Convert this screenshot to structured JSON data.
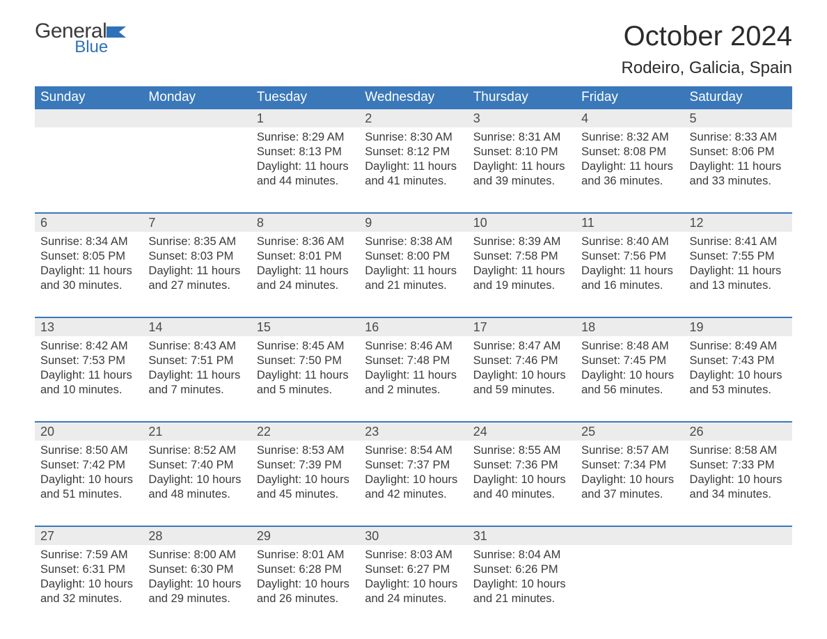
{
  "logo": {
    "text_general": "General",
    "text_blue": "Blue",
    "flag_color": "#2f71b8"
  },
  "title": "October 2024",
  "subtitle": "Rodeiro, Galicia, Spain",
  "colors": {
    "header_bg": "#3a78b9",
    "header_text": "#ffffff",
    "date_bg": "#ececec",
    "date_text": "#4a4a4a",
    "body_text": "#3a3a3a",
    "logo_blue": "#2f71b8",
    "logo_dark": "#3a3a3a",
    "background": "#ffffff"
  },
  "typography": {
    "title_fontsize": 40,
    "subtitle_fontsize": 24,
    "dayheader_fontsize": 19,
    "date_fontsize": 18,
    "detail_fontsize": 16.5
  },
  "day_headers": [
    "Sunday",
    "Monday",
    "Tuesday",
    "Wednesday",
    "Thursday",
    "Friday",
    "Saturday"
  ],
  "weeks": [
    [
      {
        "date": "",
        "lines": [
          "",
          "",
          "",
          ""
        ]
      },
      {
        "date": "",
        "lines": [
          "",
          "",
          "",
          ""
        ]
      },
      {
        "date": "1",
        "lines": [
          "Sunrise: 8:29 AM",
          "Sunset: 8:13 PM",
          "Daylight: 11 hours",
          "and 44 minutes."
        ]
      },
      {
        "date": "2",
        "lines": [
          "Sunrise: 8:30 AM",
          "Sunset: 8:12 PM",
          "Daylight: 11 hours",
          "and 41 minutes."
        ]
      },
      {
        "date": "3",
        "lines": [
          "Sunrise: 8:31 AM",
          "Sunset: 8:10 PM",
          "Daylight: 11 hours",
          "and 39 minutes."
        ]
      },
      {
        "date": "4",
        "lines": [
          "Sunrise: 8:32 AM",
          "Sunset: 8:08 PM",
          "Daylight: 11 hours",
          "and 36 minutes."
        ]
      },
      {
        "date": "5",
        "lines": [
          "Sunrise: 8:33 AM",
          "Sunset: 8:06 PM",
          "Daylight: 11 hours",
          "and 33 minutes."
        ]
      }
    ],
    [
      {
        "date": "6",
        "lines": [
          "Sunrise: 8:34 AM",
          "Sunset: 8:05 PM",
          "Daylight: 11 hours",
          "and 30 minutes."
        ]
      },
      {
        "date": "7",
        "lines": [
          "Sunrise: 8:35 AM",
          "Sunset: 8:03 PM",
          "Daylight: 11 hours",
          "and 27 minutes."
        ]
      },
      {
        "date": "8",
        "lines": [
          "Sunrise: 8:36 AM",
          "Sunset: 8:01 PM",
          "Daylight: 11 hours",
          "and 24 minutes."
        ]
      },
      {
        "date": "9",
        "lines": [
          "Sunrise: 8:38 AM",
          "Sunset: 8:00 PM",
          "Daylight: 11 hours",
          "and 21 minutes."
        ]
      },
      {
        "date": "10",
        "lines": [
          "Sunrise: 8:39 AM",
          "Sunset: 7:58 PM",
          "Daylight: 11 hours",
          "and 19 minutes."
        ]
      },
      {
        "date": "11",
        "lines": [
          "Sunrise: 8:40 AM",
          "Sunset: 7:56 PM",
          "Daylight: 11 hours",
          "and 16 minutes."
        ]
      },
      {
        "date": "12",
        "lines": [
          "Sunrise: 8:41 AM",
          "Sunset: 7:55 PM",
          "Daylight: 11 hours",
          "and 13 minutes."
        ]
      }
    ],
    [
      {
        "date": "13",
        "lines": [
          "Sunrise: 8:42 AM",
          "Sunset: 7:53 PM",
          "Daylight: 11 hours",
          "and 10 minutes."
        ]
      },
      {
        "date": "14",
        "lines": [
          "Sunrise: 8:43 AM",
          "Sunset: 7:51 PM",
          "Daylight: 11 hours",
          "and 7 minutes."
        ]
      },
      {
        "date": "15",
        "lines": [
          "Sunrise: 8:45 AM",
          "Sunset: 7:50 PM",
          "Daylight: 11 hours",
          "and 5 minutes."
        ]
      },
      {
        "date": "16",
        "lines": [
          "Sunrise: 8:46 AM",
          "Sunset: 7:48 PM",
          "Daylight: 11 hours",
          "and 2 minutes."
        ]
      },
      {
        "date": "17",
        "lines": [
          "Sunrise: 8:47 AM",
          "Sunset: 7:46 PM",
          "Daylight: 10 hours",
          "and 59 minutes."
        ]
      },
      {
        "date": "18",
        "lines": [
          "Sunrise: 8:48 AM",
          "Sunset: 7:45 PM",
          "Daylight: 10 hours",
          "and 56 minutes."
        ]
      },
      {
        "date": "19",
        "lines": [
          "Sunrise: 8:49 AM",
          "Sunset: 7:43 PM",
          "Daylight: 10 hours",
          "and 53 minutes."
        ]
      }
    ],
    [
      {
        "date": "20",
        "lines": [
          "Sunrise: 8:50 AM",
          "Sunset: 7:42 PM",
          "Daylight: 10 hours",
          "and 51 minutes."
        ]
      },
      {
        "date": "21",
        "lines": [
          "Sunrise: 8:52 AM",
          "Sunset: 7:40 PM",
          "Daylight: 10 hours",
          "and 48 minutes."
        ]
      },
      {
        "date": "22",
        "lines": [
          "Sunrise: 8:53 AM",
          "Sunset: 7:39 PM",
          "Daylight: 10 hours",
          "and 45 minutes."
        ]
      },
      {
        "date": "23",
        "lines": [
          "Sunrise: 8:54 AM",
          "Sunset: 7:37 PM",
          "Daylight: 10 hours",
          "and 42 minutes."
        ]
      },
      {
        "date": "24",
        "lines": [
          "Sunrise: 8:55 AM",
          "Sunset: 7:36 PM",
          "Daylight: 10 hours",
          "and 40 minutes."
        ]
      },
      {
        "date": "25",
        "lines": [
          "Sunrise: 8:57 AM",
          "Sunset: 7:34 PM",
          "Daylight: 10 hours",
          "and 37 minutes."
        ]
      },
      {
        "date": "26",
        "lines": [
          "Sunrise: 8:58 AM",
          "Sunset: 7:33 PM",
          "Daylight: 10 hours",
          "and 34 minutes."
        ]
      }
    ],
    [
      {
        "date": "27",
        "lines": [
          "Sunrise: 7:59 AM",
          "Sunset: 6:31 PM",
          "Daylight: 10 hours",
          "and 32 minutes."
        ]
      },
      {
        "date": "28",
        "lines": [
          "Sunrise: 8:00 AM",
          "Sunset: 6:30 PM",
          "Daylight: 10 hours",
          "and 29 minutes."
        ]
      },
      {
        "date": "29",
        "lines": [
          "Sunrise: 8:01 AM",
          "Sunset: 6:28 PM",
          "Daylight: 10 hours",
          "and 26 minutes."
        ]
      },
      {
        "date": "30",
        "lines": [
          "Sunrise: 8:03 AM",
          "Sunset: 6:27 PM",
          "Daylight: 10 hours",
          "and 24 minutes."
        ]
      },
      {
        "date": "31",
        "lines": [
          "Sunrise: 8:04 AM",
          "Sunset: 6:26 PM",
          "Daylight: 10 hours",
          "and 21 minutes."
        ]
      },
      {
        "date": "",
        "lines": [
          "",
          "",
          "",
          ""
        ]
      },
      {
        "date": "",
        "lines": [
          "",
          "",
          "",
          ""
        ]
      }
    ]
  ]
}
